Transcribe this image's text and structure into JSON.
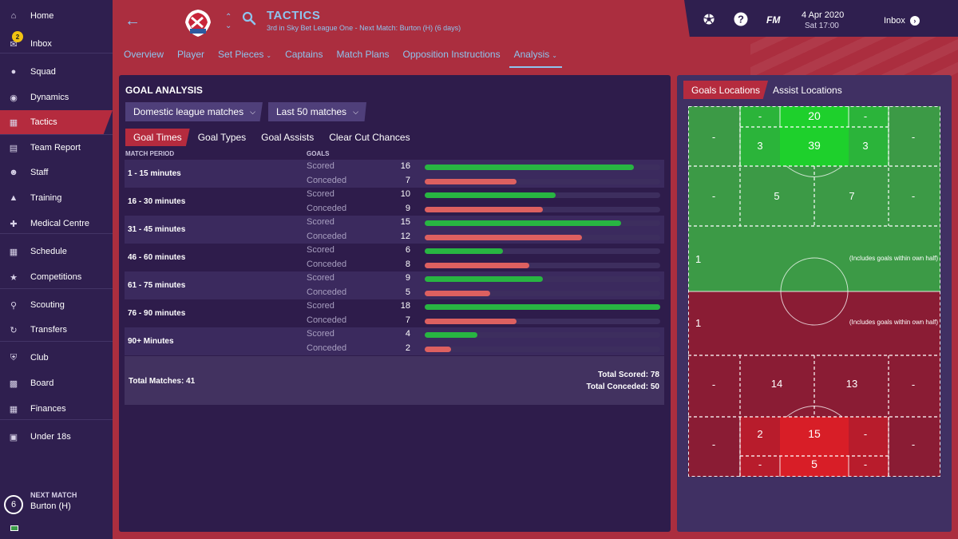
{
  "sidebar": {
    "items": [
      {
        "label": "Home",
        "icon": "home-icon"
      },
      {
        "label": "Inbox",
        "icon": "inbox-icon",
        "badge": "2"
      },
      {
        "label": "Squad",
        "icon": "squad-icon"
      },
      {
        "label": "Dynamics",
        "icon": "dynamics-icon"
      },
      {
        "label": "Tactics",
        "icon": "tactics-icon",
        "active": true
      },
      {
        "label": "Team Report",
        "icon": "team-report-icon"
      },
      {
        "label": "Staff",
        "icon": "staff-icon"
      },
      {
        "label": "Training",
        "icon": "training-icon"
      },
      {
        "label": "Medical Centre",
        "icon": "medical-icon"
      },
      {
        "label": "Schedule",
        "icon": "schedule-icon"
      },
      {
        "label": "Competitions",
        "icon": "trophy-icon"
      },
      {
        "label": "Scouting",
        "icon": "scouting-icon"
      },
      {
        "label": "Transfers",
        "icon": "transfers-icon"
      },
      {
        "label": "Club",
        "icon": "club-icon"
      },
      {
        "label": "Board",
        "icon": "board-icon"
      },
      {
        "label": "Finances",
        "icon": "finances-icon"
      },
      {
        "label": "Under 18s",
        "icon": "under18-icon"
      }
    ],
    "next_match": {
      "label": "NEXT MATCH",
      "days": "6",
      "team": "Burton (H)"
    }
  },
  "header": {
    "title": "TACTICS",
    "subtitle": "3rd in Sky Bet League One - Next Match: Burton (H) (6 days)",
    "tabs": [
      {
        "label": "Overview"
      },
      {
        "label": "Player"
      },
      {
        "label": "Set Pieces",
        "dropdown": true
      },
      {
        "label": "Captains"
      },
      {
        "label": "Match Plans"
      },
      {
        "label": "Opposition Instructions"
      },
      {
        "label": "Analysis",
        "dropdown": true,
        "active": true
      }
    ],
    "fm_logo": "FM",
    "date": "4 Apr 2020",
    "time": "Sat 17:00",
    "inbox_label": "Inbox"
  },
  "analysis": {
    "title": "GOAL ANALYSIS",
    "filter_competition": "Domestic league matches",
    "filter_matches": "Last 50 matches",
    "subtabs": [
      "Goal Times",
      "Goal Types",
      "Goal Assists",
      "Clear Cut Chances"
    ],
    "col_period": "MATCH PERIOD",
    "col_goals": "GOALS",
    "scored_label": "Scored",
    "conceded_label": "Conceded",
    "bar_max": 18,
    "periods": [
      {
        "name": "1 - 15 minutes",
        "scored": 16,
        "conceded": 7
      },
      {
        "name": "16 - 30 minutes",
        "scored": 10,
        "conceded": 9
      },
      {
        "name": "31 - 45 minutes",
        "scored": 15,
        "conceded": 12
      },
      {
        "name": "46 - 60 minutes",
        "scored": 6,
        "conceded": 8
      },
      {
        "name": "61 - 75 minutes",
        "scored": 9,
        "conceded": 5
      },
      {
        "name": "76 - 90 minutes",
        "scored": 18,
        "conceded": 7
      },
      {
        "name": "90+ Minutes",
        "scored": 4,
        "conceded": 2
      }
    ],
    "total_matches": "Total Matches: 41",
    "total_scored": "Total Scored: 78",
    "total_conceded": "Total Conceded: 50"
  },
  "locations": {
    "tabs": [
      "Goals Locations",
      "Assist Locations"
    ],
    "own_half_note": "(Includes goals within own half)",
    "scored_zones": {
      "six_left": "-",
      "six_centre": "20",
      "six_right": "-",
      "wide_left": "-",
      "box_left": "3",
      "box_centre": "39",
      "box_right": "3",
      "wide_right": "-",
      "edge_far_left": "-",
      "edge_left": "5",
      "edge_right": "7",
      "edge_far_right": "-",
      "half": "1"
    },
    "conceded_zones": {
      "half": "1",
      "edge_far_left": "-",
      "edge_left": "14",
      "edge_right": "13",
      "edge_far_right": "-",
      "wide_left": "-",
      "box_left": "2",
      "box_centre": "15",
      "box_right": "-",
      "wide_right": "-",
      "six_left": "-",
      "six_centre": "5",
      "six_right": "-"
    },
    "colors": {
      "scored_base": "#3c9a46",
      "scored_mid": "#2bb43a",
      "scored_hot": "#1ed02c",
      "conceded_base": "#8a1c34",
      "conceded_mid": "#b81c2c",
      "conceded_hot": "#d81e27"
    }
  }
}
